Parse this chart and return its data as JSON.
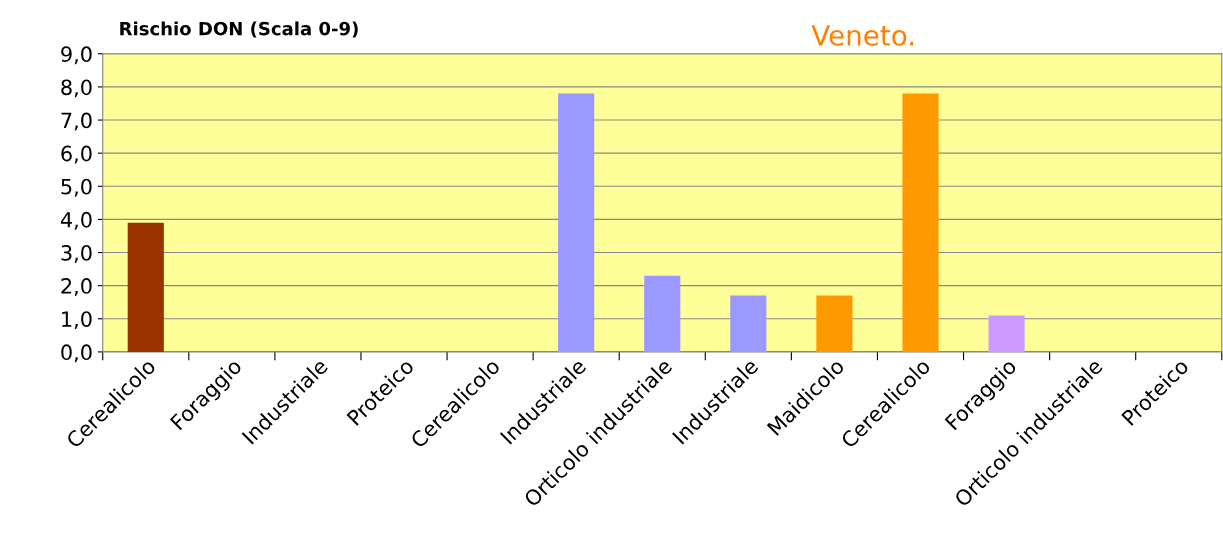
{
  "chart_data": {
    "type": "bar",
    "title": "Veneto.",
    "ylabel": "Rischio DON (Scala 0-9)",
    "categories": [
      "Cerealicolo",
      "Foraggio",
      "Industriale",
      "Proteico",
      "Cerealicolo",
      "Industriale",
      "Orticolo industriale",
      "Industriale",
      "Maidicolo",
      "Cerealicolo",
      "Foraggio",
      "Orticolo industriale",
      "Proteico"
    ],
    "values": [
      3.9,
      0,
      0,
      0,
      0,
      7.8,
      2.3,
      1.7,
      1.7,
      7.8,
      1.1,
      0,
      0
    ],
    "colors": [
      "#993300",
      "#9999ff",
      "#9999ff",
      "#9999ff",
      "#9999ff",
      "#9999ff",
      "#9999ff",
      "#9999ff",
      "#ff9900",
      "#ff9900",
      "#cc99ff",
      "#cc99ff",
      "#cc99ff"
    ],
    "ylim": [
      0,
      9
    ],
    "yticks": [
      {
        "value": 0,
        "label": "0,0"
      },
      {
        "value": 1,
        "label": "1,0"
      },
      {
        "value": 2,
        "label": "2,0"
      },
      {
        "value": 3,
        "label": "3,0"
      },
      {
        "value": 4,
        "label": "4,0"
      },
      {
        "value": 5,
        "label": "5,0"
      },
      {
        "value": 6,
        "label": "6,0"
      },
      {
        "value": 7,
        "label": "7,0"
      },
      {
        "value": 8,
        "label": "8,0"
      },
      {
        "value": 9,
        "label": "9,0"
      }
    ],
    "grid": "y",
    "legend": false
  }
}
